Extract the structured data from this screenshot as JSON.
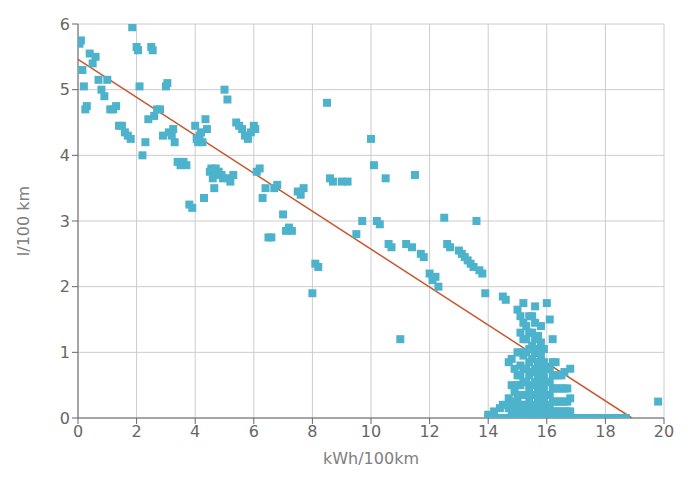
{
  "chart_data": {
    "type": "scatter",
    "xlabel": "kWh/100km",
    "ylabel": "l/100 km",
    "xlim": [
      0,
      20
    ],
    "ylim": [
      0,
      6
    ],
    "xticks": [
      0,
      2,
      4,
      6,
      8,
      10,
      12,
      14,
      16,
      18,
      20
    ],
    "yticks": [
      0,
      1,
      2,
      3,
      4,
      5,
      6
    ],
    "grid": true,
    "series": [
      {
        "type": "scatter",
        "color": "#4db3cc",
        "marker": "square",
        "x": [
          0.05,
          0.1,
          0.15,
          0.2,
          0.25,
          0.3,
          0.4,
          0.5,
          0.6,
          0.7,
          0.8,
          0.9,
          1.0,
          1.1,
          1.2,
          1.3,
          1.4,
          1.5,
          1.6,
          1.7,
          1.8,
          1.85,
          2.0,
          2.05,
          2.1,
          2.2,
          2.3,
          2.4,
          2.5,
          2.55,
          2.6,
          2.7,
          2.8,
          2.9,
          3.0,
          3.05,
          3.1,
          3.2,
          3.25,
          3.3,
          3.4,
          3.5,
          3.6,
          3.7,
          3.8,
          3.9,
          4.0,
          4.05,
          4.1,
          4.15,
          4.2,
          4.25,
          4.3,
          4.35,
          4.4,
          4.5,
          4.55,
          4.6,
          4.65,
          4.7,
          4.75,
          4.8,
          4.85,
          4.9,
          4.95,
          5.0,
          5.1,
          5.15,
          5.2,
          5.3,
          5.4,
          5.5,
          5.6,
          5.7,
          5.8,
          5.9,
          6.0,
          6.05,
          6.1,
          6.2,
          6.3,
          6.4,
          6.5,
          6.6,
          6.7,
          6.8,
          7.0,
          7.1,
          7.2,
          7.3,
          7.5,
          7.6,
          7.7,
          8.0,
          8.1,
          8.2,
          8.5,
          8.6,
          8.7,
          9.0,
          9.2,
          9.5,
          9.7,
          10.0,
          10.1,
          10.2,
          10.3,
          10.5,
          10.6,
          10.7,
          11.0,
          11.2,
          11.4,
          11.5,
          11.7,
          11.8,
          12.0,
          12.1,
          12.2,
          12.3,
          12.5,
          12.6,
          12.7,
          13.0,
          13.1,
          13.2,
          13.3,
          13.4,
          13.5,
          13.6,
          13.7,
          13.8,
          13.9,
          14.0,
          14.0,
          14.05,
          14.1,
          14.2,
          14.2,
          14.3,
          14.4,
          14.4,
          14.5,
          14.5,
          14.5,
          14.6,
          14.6,
          14.6,
          14.7,
          14.7,
          14.7,
          14.7,
          14.8,
          14.8,
          14.8,
          14.8,
          14.8,
          14.9,
          14.9,
          14.9,
          14.9,
          14.9,
          15.0,
          15.0,
          15.0,
          15.0,
          15.0,
          15.0,
          15.0,
          15.0,
          15.1,
          15.1,
          15.1,
          15.1,
          15.1,
          15.1,
          15.1,
          15.1,
          15.1,
          15.1,
          15.2,
          15.2,
          15.2,
          15.2,
          15.2,
          15.2,
          15.2,
          15.2,
          15.2,
          15.2,
          15.3,
          15.3,
          15.3,
          15.3,
          15.3,
          15.3,
          15.3,
          15.3,
          15.3,
          15.4,
          15.4,
          15.4,
          15.4,
          15.4,
          15.4,
          15.4,
          15.4,
          15.4,
          15.5,
          15.5,
          15.5,
          15.5,
          15.5,
          15.5,
          15.5,
          15.5,
          15.5,
          15.5,
          15.6,
          15.6,
          15.6,
          15.6,
          15.6,
          15.6,
          15.6,
          15.6,
          15.6,
          15.6,
          15.7,
          15.7,
          15.7,
          15.7,
          15.7,
          15.7,
          15.7,
          15.7,
          15.8,
          15.8,
          15.8,
          15.8,
          15.8,
          15.8,
          15.8,
          15.8,
          15.8,
          15.9,
          15.9,
          15.9,
          15.9,
          15.9,
          15.9,
          15.9,
          16.0,
          16.0,
          16.0,
          16.0,
          16.0,
          16.0,
          16.0,
          16.1,
          16.1,
          16.1,
          16.1,
          16.1,
          16.1,
          16.1,
          16.2,
          16.2,
          16.2,
          16.2,
          16.2,
          16.2,
          16.2,
          16.3,
          16.3,
          16.3,
          16.3,
          16.3,
          16.3,
          16.4,
          16.4,
          16.4,
          16.4,
          16.4,
          16.5,
          16.5,
          16.5,
          16.5,
          16.5,
          16.6,
          16.6,
          16.6,
          16.6,
          16.6,
          16.7,
          16.7,
          16.7,
          16.7,
          16.8,
          16.8,
          16.8,
          16.8,
          17.0,
          17.1,
          17.2,
          17.3,
          17.4,
          17.5,
          17.6,
          17.7,
          17.8,
          17.9,
          18.0,
          18.1,
          18.2,
          18.3,
          18.4,
          18.5,
          18.6,
          18.7,
          19.8
        ],
        "values": [
          5.7,
          5.75,
          5.3,
          5.05,
          4.7,
          4.75,
          5.55,
          5.4,
          5.5,
          5.15,
          5.0,
          4.9,
          5.15,
          4.7,
          4.7,
          4.75,
          4.45,
          4.45,
          4.35,
          4.3,
          4.25,
          5.95,
          5.65,
          5.6,
          5.05,
          4.0,
          4.2,
          4.55,
          5.65,
          5.6,
          4.6,
          4.7,
          4.7,
          4.3,
          5.05,
          5.1,
          4.35,
          4.3,
          4.4,
          4.2,
          3.9,
          3.85,
          3.9,
          3.85,
          3.25,
          3.2,
          4.45,
          4.25,
          4.2,
          4.3,
          4.35,
          4.2,
          3.35,
          4.55,
          4.4,
          3.75,
          3.8,
          3.65,
          3.5,
          3.8,
          3.75,
          3.75,
          3.7,
          3.7,
          3.65,
          5.0,
          4.85,
          3.65,
          3.6,
          3.7,
          4.5,
          4.45,
          4.4,
          4.3,
          4.25,
          4.35,
          4.45,
          4.4,
          3.75,
          3.8,
          3.35,
          3.5,
          2.75,
          2.75,
          3.5,
          3.55,
          3.1,
          2.85,
          2.9,
          2.85,
          3.45,
          3.4,
          3.5,
          1.9,
          2.35,
          2.3,
          4.8,
          3.65,
          3.6,
          3.6,
          3.6,
          2.8,
          3.0,
          4.25,
          3.85,
          3.0,
          2.95,
          3.65,
          2.65,
          2.6,
          1.2,
          2.65,
          2.6,
          3.7,
          2.5,
          2.45,
          2.2,
          2.1,
          2.15,
          2.0,
          3.05,
          2.65,
          2.6,
          2.55,
          2.5,
          2.45,
          2.4,
          2.35,
          2.3,
          3.0,
          2.25,
          2.2,
          1.9,
          0.05,
          0.0,
          0.0,
          0.0,
          0.0,
          0.1,
          0.0,
          0.0,
          0.15,
          0.0,
          0.2,
          1.85,
          0.0,
          0.2,
          1.8,
          0.0,
          0.15,
          0.3,
          0.85,
          0.0,
          0.1,
          0.25,
          0.5,
          0.9,
          0.0,
          0.1,
          0.2,
          0.4,
          0.75,
          0.0,
          0.1,
          0.2,
          0.3,
          0.5,
          0.65,
          1.0,
          1.65,
          0.0,
          0.1,
          0.2,
          0.35,
          0.5,
          0.65,
          0.8,
          1.0,
          1.3,
          1.55,
          0.0,
          0.1,
          0.2,
          0.35,
          0.55,
          0.75,
          0.95,
          1.2,
          1.45,
          1.75,
          0.0,
          0.1,
          0.2,
          0.35,
          0.55,
          0.75,
          1.0,
          1.2,
          1.4,
          0.0,
          0.15,
          0.3,
          0.45,
          0.65,
          0.85,
          1.05,
          1.3,
          1.55,
          0.0,
          0.1,
          0.2,
          0.35,
          0.5,
          0.7,
          0.9,
          1.1,
          1.3,
          1.55,
          0.0,
          0.1,
          0.2,
          0.35,
          0.55,
          0.75,
          1.0,
          1.2,
          1.45,
          1.7,
          0.0,
          0.1,
          0.25,
          0.45,
          0.65,
          0.85,
          1.05,
          1.25,
          0.0,
          0.1,
          0.2,
          0.35,
          0.55,
          0.75,
          0.95,
          1.15,
          1.4,
          0.0,
          0.1,
          0.25,
          0.45,
          0.65,
          0.85,
          1.05,
          0.0,
          0.1,
          0.2,
          0.35,
          0.55,
          0.75,
          1.75,
          0.0,
          0.1,
          0.2,
          0.35,
          0.55,
          0.75,
          1.5,
          0.0,
          0.1,
          0.25,
          0.45,
          0.65,
          0.85,
          1.2,
          0.0,
          0.1,
          0.25,
          0.45,
          0.65,
          0.85,
          0.0,
          0.1,
          0.25,
          0.45,
          0.65,
          0.0,
          0.1,
          0.25,
          0.45,
          0.65,
          0.0,
          0.1,
          0.25,
          0.45,
          0.7,
          0.0,
          0.1,
          0.25,
          0.45,
          0.0,
          0.1,
          0.3,
          0.75,
          0.0,
          0.0,
          0.0,
          0.0,
          0.0,
          0.0,
          0.0,
          0.0,
          0.0,
          0.0,
          0.0,
          0.0,
          0.0,
          0.0,
          0.0,
          0.0,
          0.0,
          0.0,
          0.25
        ]
      },
      {
        "type": "line",
        "color": "#c8562a",
        "x": [
          0.0,
          18.9
        ],
        "values": [
          5.46,
          0.0
        ]
      }
    ]
  }
}
